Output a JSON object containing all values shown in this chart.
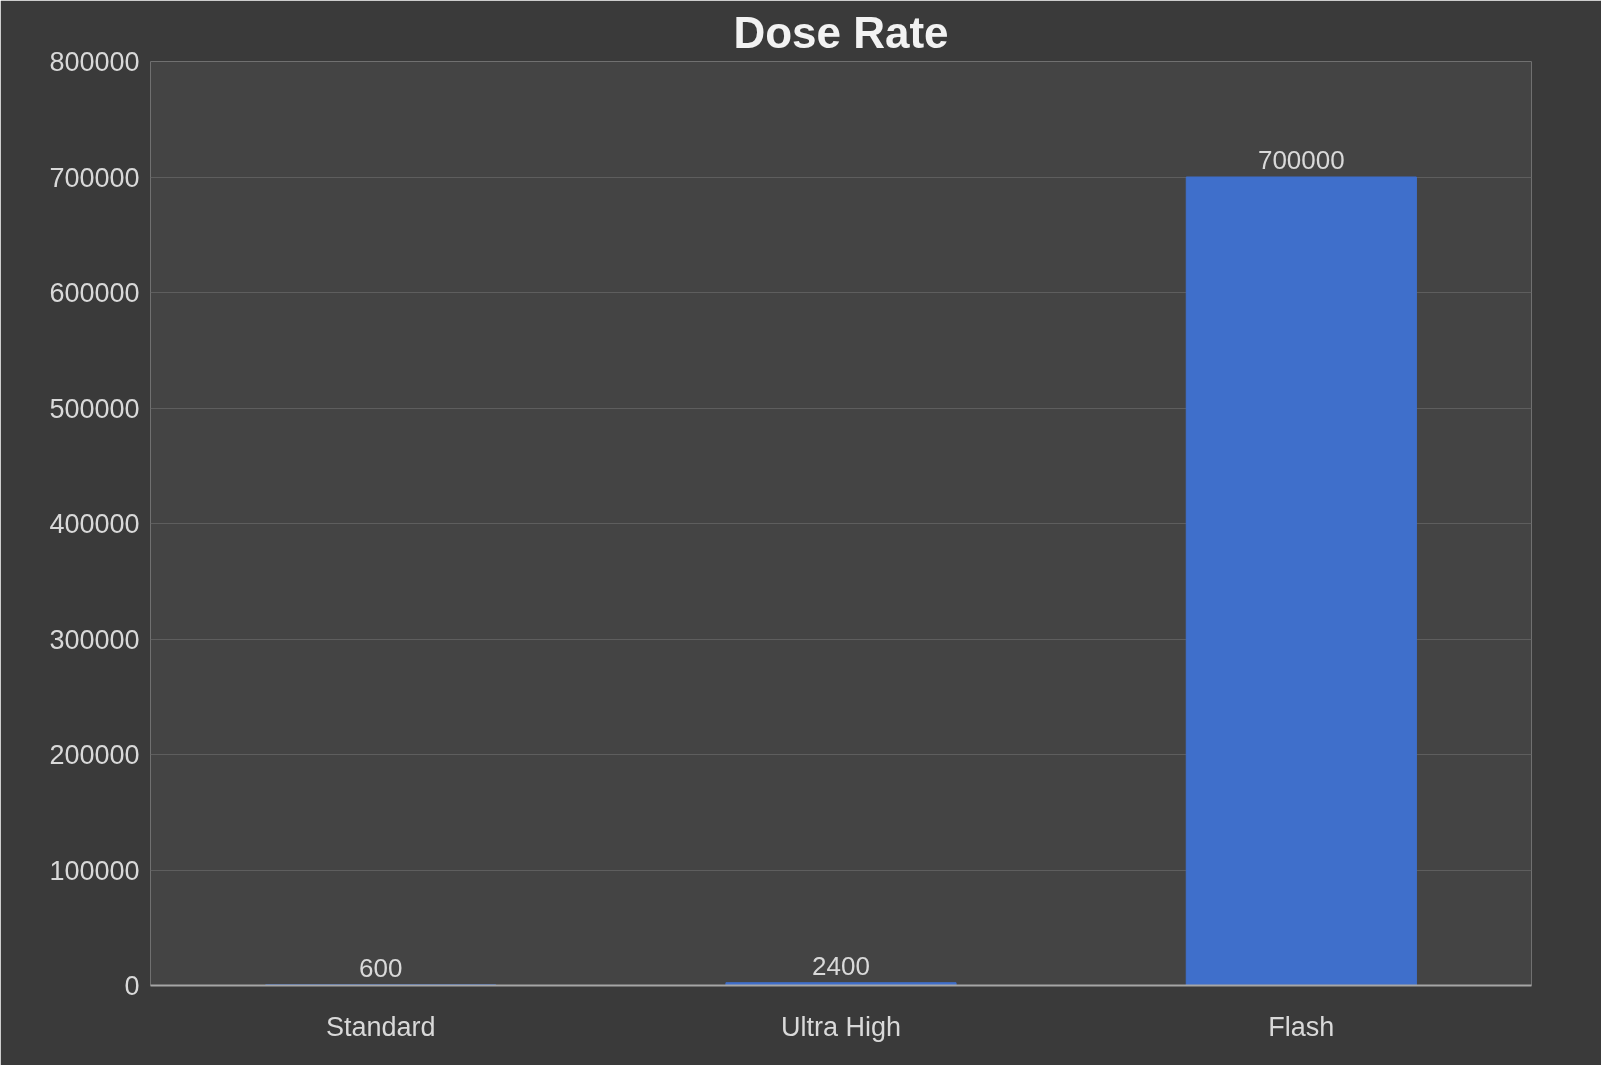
{
  "chart_data": {
    "type": "bar",
    "title": "Dose Rate",
    "categories": [
      "Standard",
      "Ultra High",
      "Flash"
    ],
    "values": [
      600,
      2400,
      700000
    ],
    "color": "#3f6fcb",
    "ylim": [
      0,
      800000
    ],
    "yticks": [
      0,
      100000,
      200000,
      300000,
      400000,
      500000,
      600000,
      700000,
      800000
    ],
    "grid": "y",
    "data_labels": true
  }
}
